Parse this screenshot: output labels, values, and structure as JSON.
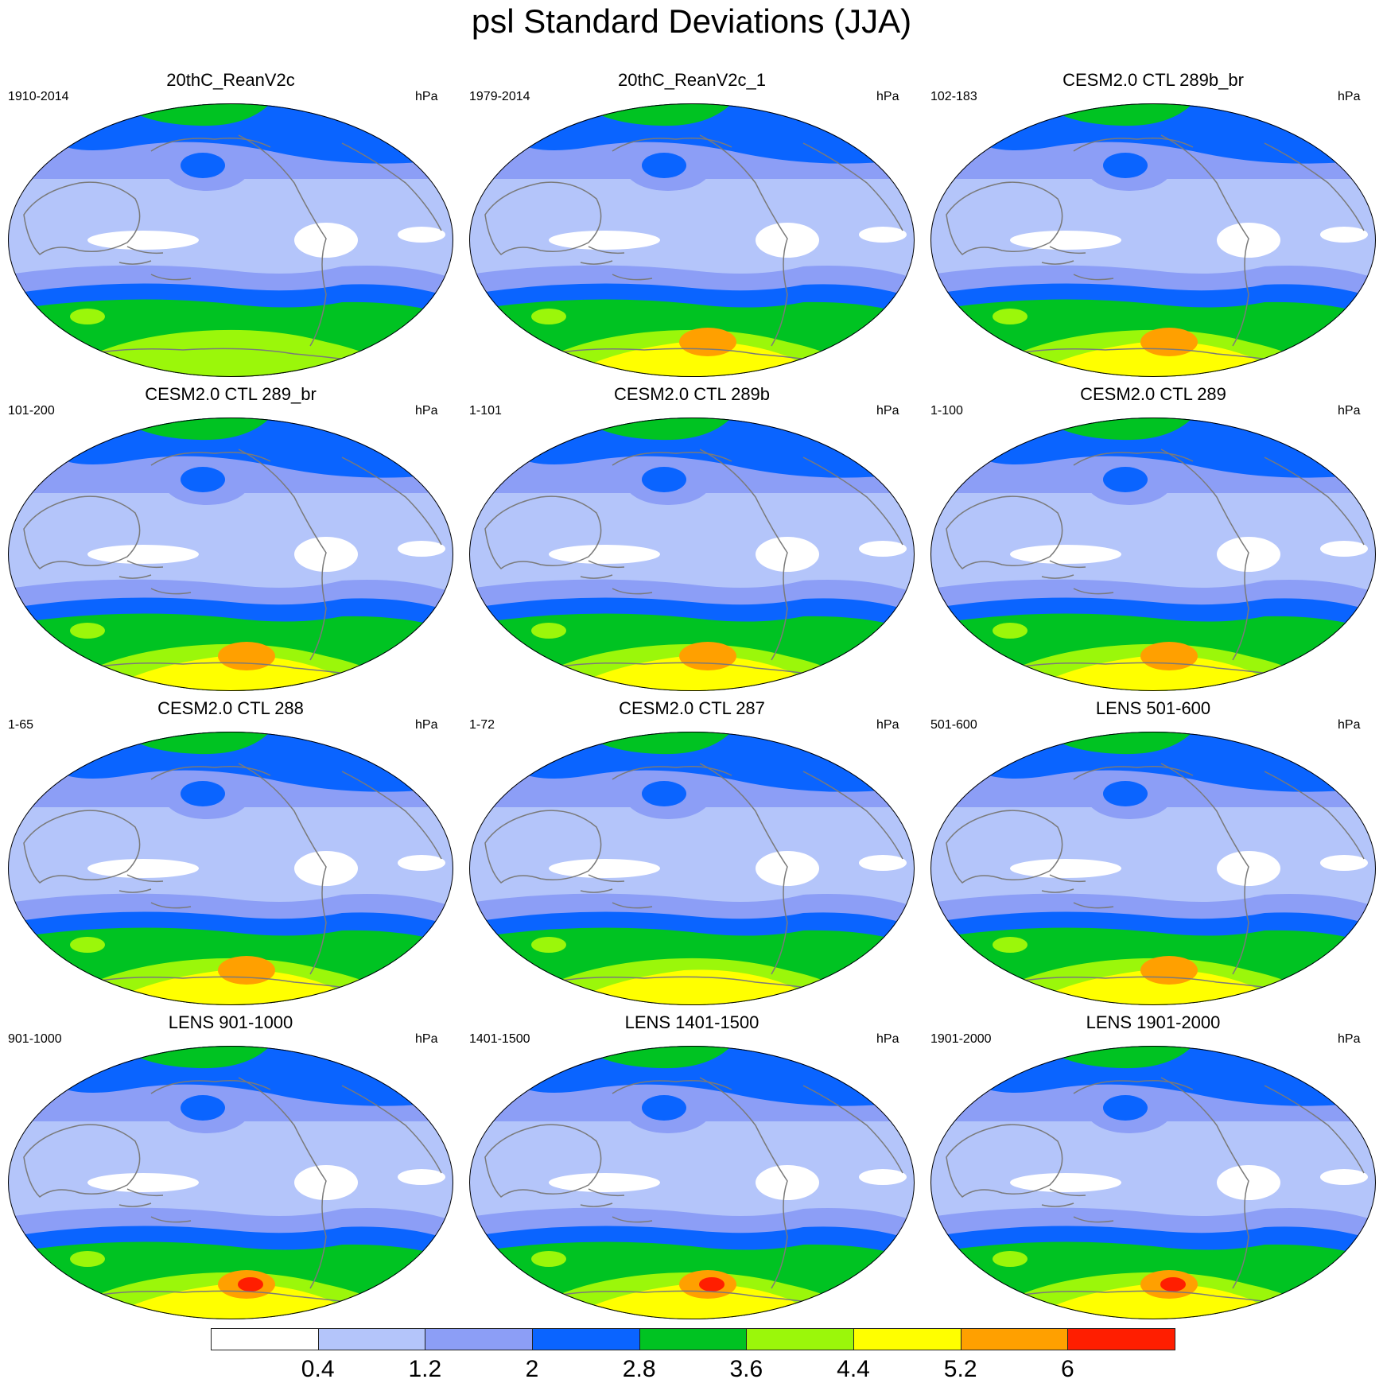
{
  "title": "psl Standard Deviations (JJA)",
  "panels": [
    {
      "title": "20thC_ReanV2c",
      "period": "1910-2014",
      "units": "hPa",
      "max_level": 5
    },
    {
      "title": "20thC_ReanV2c_1",
      "period": "1979-2014",
      "units": "hPa",
      "max_level": 7
    },
    {
      "title": "CESM2.0 CTL 289b_br",
      "period": "102-183",
      "units": "hPa",
      "max_level": 7
    },
    {
      "title": "CESM2.0 CTL 289_br",
      "period": "101-200",
      "units": "hPa",
      "max_level": 7
    },
    {
      "title": "CESM2.0 CTL 289b",
      "period": "1-101",
      "units": "hPa",
      "max_level": 7
    },
    {
      "title": "CESM2.0 CTL 289",
      "period": "1-100",
      "units": "hPa",
      "max_level": 7
    },
    {
      "title": "CESM2.0 CTL 288",
      "period": "1-65",
      "units": "hPa",
      "max_level": 7
    },
    {
      "title": "CESM2.0 CTL 287",
      "period": "1-72",
      "units": "hPa",
      "max_level": 6
    },
    {
      "title": "LENS 501-600",
      "period": "501-600",
      "units": "hPa",
      "max_level": 7
    },
    {
      "title": "LENS 901-1000",
      "period": "901-1000",
      "units": "hPa",
      "max_level": 8
    },
    {
      "title": "LENS 1401-1500",
      "period": "1401-1500",
      "units": "hPa",
      "max_level": 8
    },
    {
      "title": "LENS 1901-2000",
      "period": "1901-2000",
      "units": "hPa",
      "max_level": 8
    }
  ],
  "colorbar": {
    "colors": [
      "#ffffff",
      "#b4c5fa",
      "#8c9ef6",
      "#0a64ff",
      "#00c322",
      "#9bf70a",
      "#ffff00",
      "#ffa000",
      "#ff1e00"
    ],
    "labels": [
      "0.4",
      "1.2",
      "2",
      "2.8",
      "3.6",
      "4.4",
      "5.2",
      "6"
    ]
  }
}
